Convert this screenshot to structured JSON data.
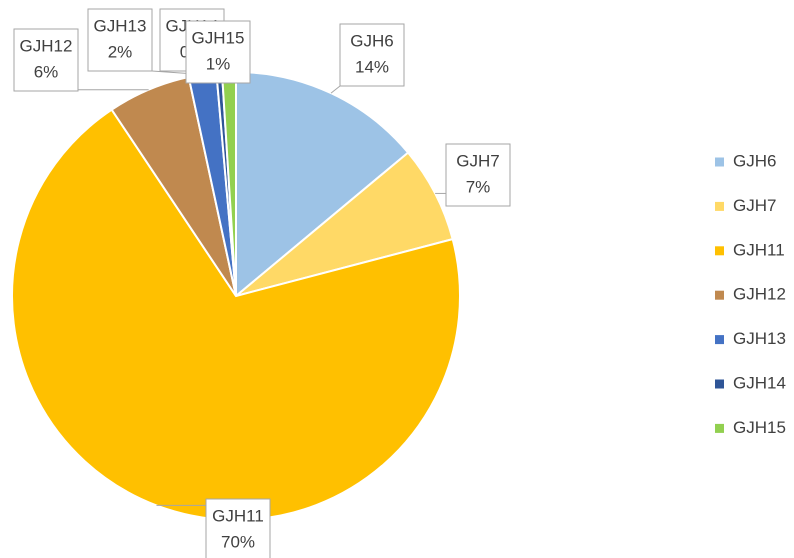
{
  "chart_data": {
    "type": "pie",
    "categories": [
      "GJH6",
      "GJH7",
      "GJH11",
      "GJH12",
      "GJH13",
      "GJH14",
      "GJH15"
    ],
    "values": [
      14,
      7,
      70,
      6,
      2,
      0.4,
      1
    ],
    "value_labels": [
      "14%",
      "7%",
      "70%",
      "6%",
      "2%",
      "0%",
      "1%"
    ],
    "colors": [
      "#9dc3e6",
      "#ffd966",
      "#ffc000",
      "#c0894f",
      "#4472c4",
      "#2f5597",
      "#92d050"
    ],
    "legend": "right"
  }
}
